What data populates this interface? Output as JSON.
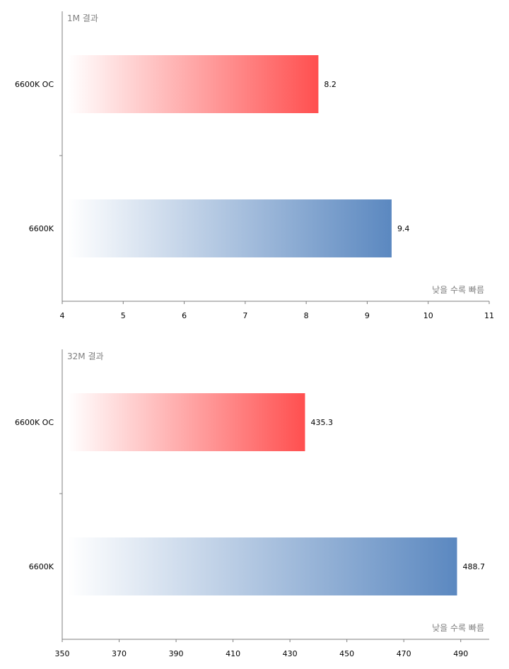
{
  "chart_data": [
    {
      "type": "bar",
      "orientation": "horizontal",
      "title": "1M 결과",
      "categories": [
        "6600K OC",
        "6600K"
      ],
      "values": [
        8.2,
        9.4
      ],
      "value_labels": [
        "8.2",
        "9.4"
      ],
      "xlim": [
        4,
        11
      ],
      "xticks": [
        "4",
        "5",
        "6",
        "7",
        "8",
        "9",
        "10",
        "11"
      ],
      "note": "낮을 수록 빠름",
      "colors": [
        "#ff4f4f",
        "#5b88c0"
      ],
      "grid": false
    },
    {
      "type": "bar",
      "orientation": "horizontal",
      "title": "32M 결과",
      "categories": [
        "6600K OC",
        "6600K"
      ],
      "values": [
        435.3,
        488.7
      ],
      "value_labels": [
        "435.3",
        "488.7"
      ],
      "xlim": [
        350,
        500
      ],
      "xticks": [
        "350",
        "370",
        "390",
        "410",
        "430",
        "450",
        "470",
        "490"
      ],
      "note": "낮을 수록 빠름",
      "colors": [
        "#ff4f4f",
        "#5b88c0"
      ],
      "grid": false
    }
  ]
}
